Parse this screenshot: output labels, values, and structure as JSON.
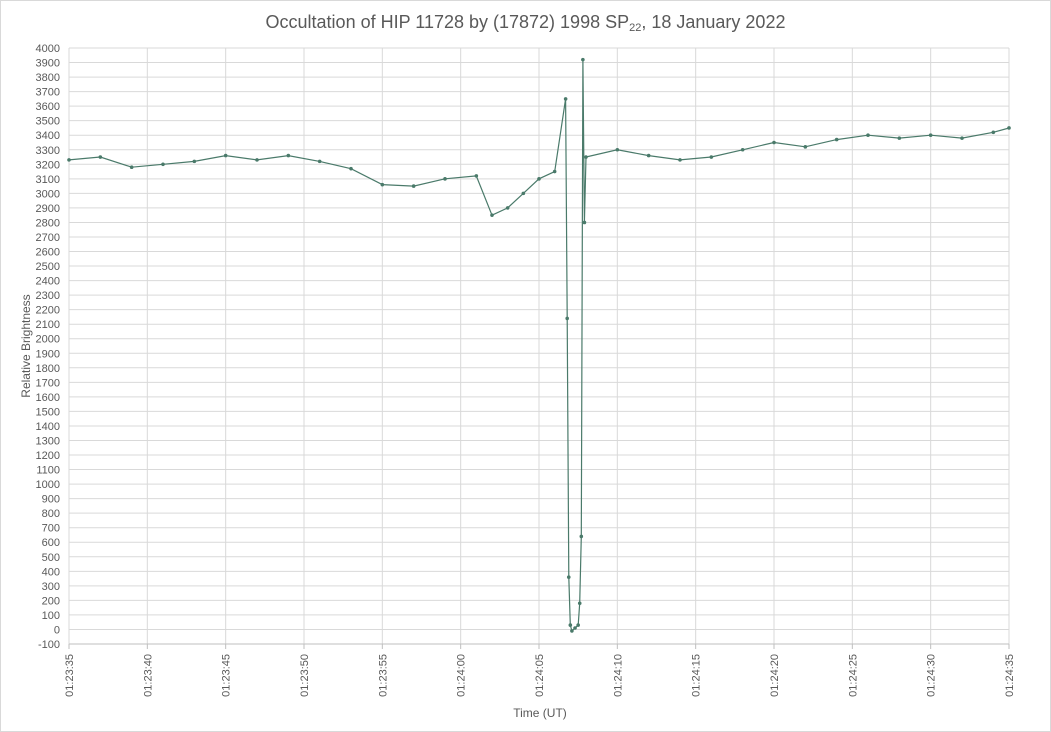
{
  "chart_data": {
    "type": "line",
    "title_main": "Occultation of HIP 11728 by (17872) 1998 SP",
    "title_sub": "22",
    "title_tail": ", 18 January 2022",
    "xlabel": "Time (UT)",
    "ylabel": "Relative Brightness",
    "ylim": [
      -100,
      4000
    ],
    "ytick_step": 100,
    "xlim": [
      "01:23:35",
      "01:24:35"
    ],
    "x_ticks": [
      "01:23:35",
      "01:23:40",
      "01:23:45",
      "01:23:50",
      "01:23:55",
      "01:24:00",
      "01:24:05",
      "01:24:10",
      "01:24:15",
      "01:24:20",
      "01:24:25",
      "01:24:30",
      "01:24:35"
    ],
    "grid": true,
    "legend": "none",
    "line_color": "#4a7a6a",
    "series": [
      {
        "x": [
          "01:23:35",
          "01:23:37",
          "01:23:39",
          "01:23:41",
          "01:23:43",
          "01:23:45",
          "01:23:47",
          "01:23:49",
          "01:23:51",
          "01:23:53",
          "01:23:55",
          "01:23:57",
          "01:23:59",
          "01:24:01",
          "01:24:02",
          "01:24:03",
          "01:24:04",
          "01:24:05",
          "01:24:06",
          "01:24:06.7",
          "01:24:06.8",
          "01:24:06.9",
          "01:24:07.0",
          "01:24:07.1",
          "01:24:07.3",
          "01:24:07.5",
          "01:24:07.6",
          "01:24:07.7",
          "01:24:07.8",
          "01:24:07.9",
          "01:24:08",
          "01:24:10",
          "01:24:12",
          "01:24:14",
          "01:24:16",
          "01:24:18",
          "01:24:20",
          "01:24:22",
          "01:24:24",
          "01:24:26",
          "01:24:28",
          "01:24:30",
          "01:24:32",
          "01:24:34",
          "01:24:35"
        ],
        "values": [
          3230,
          3250,
          3180,
          3200,
          3220,
          3260,
          3230,
          3260,
          3220,
          3170,
          3060,
          3050,
          3100,
          3120,
          2850,
          2900,
          3000,
          3100,
          3150,
          3650,
          2140,
          360,
          30,
          -10,
          10,
          30,
          180,
          640,
          3920,
          2800,
          3250,
          3300,
          3260,
          3230,
          3250,
          3300,
          3350,
          3320,
          3370,
          3400,
          3380,
          3400,
          3380,
          3420,
          3450
        ]
      }
    ]
  }
}
